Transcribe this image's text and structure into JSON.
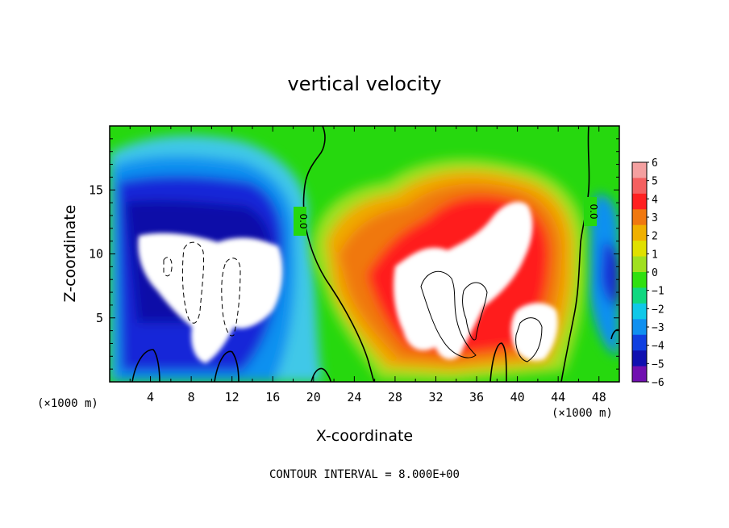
{
  "chart_data": {
    "type": "heatmap",
    "title": "vertical velocity",
    "xlabel": "X-coordinate",
    "ylabel": "Z-coordinate",
    "x_unit_left": "(×1000 m)",
    "x_unit_right": "(×1000 m)",
    "xlim": [
      0,
      50
    ],
    "ylim": [
      0,
      20
    ],
    "x_ticks": [
      4,
      8,
      12,
      16,
      20,
      24,
      28,
      32,
      36,
      40,
      44,
      48
    ],
    "y_ticks": [
      5,
      10,
      15
    ],
    "footer": "CONTOUR INTERVAL = 8.000E+00",
    "contour_label": "0.0",
    "colorbar": {
      "levels": [
        6,
        5,
        4,
        3,
        2,
        1,
        0,
        -1,
        -2,
        -3,
        -4,
        -5,
        -6
      ],
      "labels": [
        "6",
        "5",
        "4",
        "3",
        "2",
        "1",
        "0",
        "−1",
        "−2",
        "−3",
        "−4",
        "−5",
        "−6"
      ],
      "colors": [
        "#f4a0a0",
        "#f46060",
        "#ff2020",
        "#f07810",
        "#f0b000",
        "#e0e000",
        "#a0e020",
        "#30e010",
        "#10d880",
        "#10c8e8",
        "#1090f0",
        "#1040e0",
        "#1010b0",
        "#7010b0"
      ]
    },
    "colors": {
      "background": "#26d80e",
      "strong_updraft": "#ff1a1a",
      "weak_updraft": "#f07810",
      "strong_downdraft": "#1420c8",
      "saturated": "#ffffff"
    }
  }
}
